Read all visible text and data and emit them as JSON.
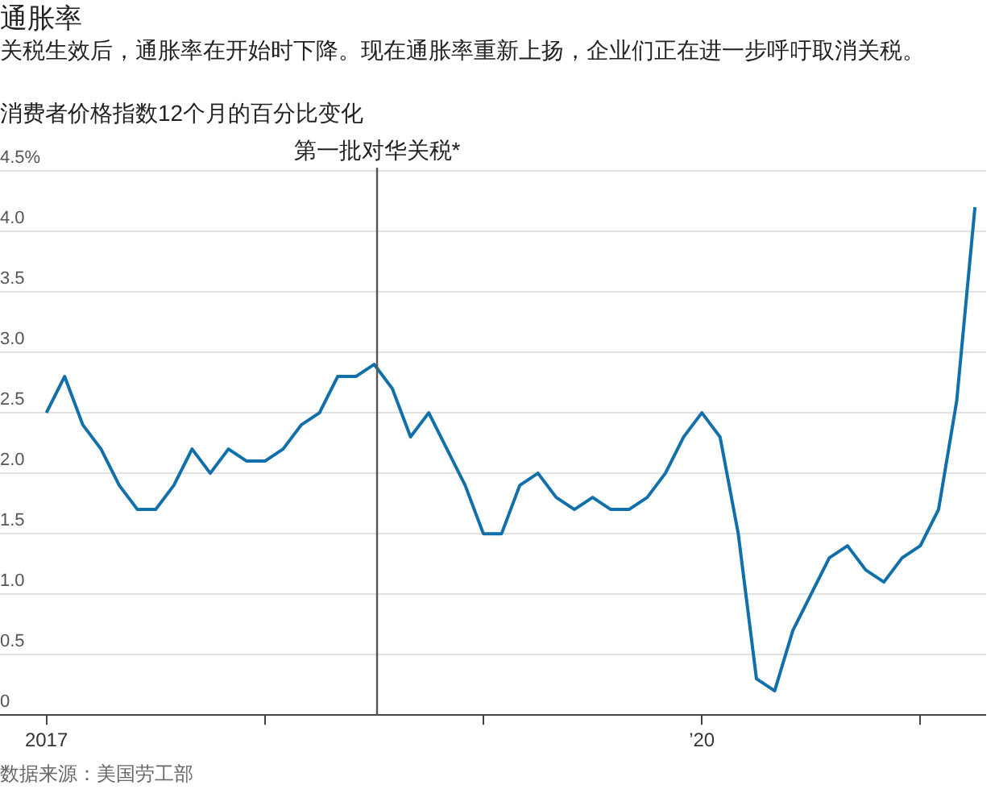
{
  "chart_data": {
    "type": "line",
    "title": "通胀率",
    "subtitle": "关税生效后，通胀率在开始时下降。现在通胀率重新上扬，企业们正在进一步呼吁取消关税。",
    "ylabel": "消费者价格指数12个月的百分比变化",
    "annotations": [
      "数据来源：美国劳工部"
    ],
    "x": [
      "2017-01",
      "2017-02",
      "2017-03",
      "2017-04",
      "2017-05",
      "2017-06",
      "2017-07",
      "2017-08",
      "2017-09",
      "2017-10",
      "2017-11",
      "2017-12",
      "2018-01",
      "2018-02",
      "2018-03",
      "2018-04",
      "2018-05",
      "2018-06",
      "2018-07",
      "2018-08",
      "2018-09",
      "2018-10",
      "2018-11",
      "2018-12",
      "2019-01",
      "2019-02",
      "2019-03",
      "2019-04",
      "2019-05",
      "2019-06",
      "2019-07",
      "2019-08",
      "2019-09",
      "2019-10",
      "2019-11",
      "2019-12",
      "2020-01",
      "2020-02",
      "2020-03",
      "2020-04",
      "2020-05",
      "2020-06",
      "2020-07",
      "2020-08",
      "2020-09",
      "2020-10",
      "2020-11",
      "2020-12",
      "2021-01",
      "2021-02",
      "2021-03",
      "2021-04"
    ],
    "series": [
      {
        "color": "#1170aa",
        "values": [
          2.5,
          2.8,
          2.4,
          2.2,
          1.9,
          1.7,
          1.7,
          1.9,
          2.2,
          2.0,
          2.2,
          2.1,
          2.1,
          2.2,
          2.4,
          2.5,
          2.8,
          2.8,
          2.9,
          2.7,
          2.3,
          2.5,
          2.2,
          1.9,
          1.5,
          1.5,
          1.9,
          2.0,
          1.8,
          1.7,
          1.8,
          1.7,
          1.7,
          1.8,
          2.0,
          2.3,
          2.5,
          2.3,
          1.5,
          0.3,
          0.2,
          0.7,
          1.0,
          1.3,
          1.4,
          1.2,
          1.1,
          1.3,
          1.4,
          1.7,
          2.6,
          4.2
        ]
      }
    ],
    "xlim": [
      "2016-10-15",
      "2021-04-20"
    ],
    "xticks": [
      {
        "value": "2017-01",
        "label": "2017"
      },
      {
        "value": "2018-01",
        "label": null
      },
      {
        "value": "2019-01",
        "label": null
      },
      {
        "value": "2020-01",
        "label": "’20"
      },
      {
        "value": "2021-01",
        "label": null
      }
    ],
    "ylim": [
      0,
      4.5
    ],
    "yticks": [
      0,
      0.5,
      {
        "value": 1,
        "label": "1.0"
      },
      1.5,
      {
        "value": 2,
        "label": "2.0"
      },
      2.5,
      {
        "value": 3,
        "label": "3.0"
      },
      3.5,
      {
        "value": 4,
        "label": "4.0"
      },
      {
        "value": 4.5,
        "label": "4.5%"
      }
    ],
    "grid": "y",
    "legend": false,
    "marker": "none",
    "line_style": "solid",
    "ref_lines": [
      {
        "axis": "x",
        "value": "2018-07-06",
        "label": "第一批对华关税*",
        "color": "#555555"
      }
    ]
  }
}
